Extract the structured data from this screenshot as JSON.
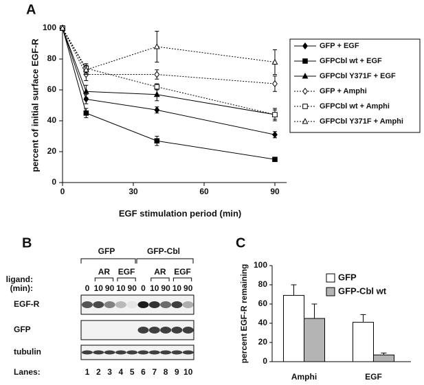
{
  "panel_labels": [
    "A",
    "B",
    "C"
  ],
  "chart_data": [
    {
      "type": "line",
      "x_label": "EGF stimulation period (min)",
      "y_label": "percent of initial surface EGF-R",
      "x": [
        0,
        10,
        40,
        90
      ],
      "xlim": [
        0,
        95
      ],
      "xticks": [
        0,
        30,
        60,
        90
      ],
      "ylim": [
        0,
        100
      ],
      "yticks": [
        0,
        20,
        40,
        60,
        80,
        100
      ],
      "series": [
        {
          "name": "GFP + EGF",
          "color": "#000000",
          "marker": "diamond",
          "filled": true,
          "dash": "solid",
          "values": [
            100,
            54,
            47,
            31
          ],
          "errors": [
            0,
            3,
            2,
            2
          ]
        },
        {
          "name": "GFPCbl wt + EGF",
          "color": "#000000",
          "marker": "square",
          "filled": true,
          "dash": "solid",
          "values": [
            100,
            45,
            27,
            15
          ],
          "errors": [
            0,
            3,
            3,
            1
          ]
        },
        {
          "name": "GFPCbl Y371F + EGF",
          "color": "#000000",
          "marker": "triangle",
          "filled": true,
          "dash": "solid",
          "values": [
            100,
            59,
            57,
            44
          ],
          "errors": [
            0,
            4,
            4,
            3
          ]
        },
        {
          "name": "GFP + Amphi",
          "color": "#000000",
          "marker": "diamond",
          "filled": false,
          "dash": "dotted",
          "values": [
            100,
            70,
            70,
            64
          ],
          "errors": [
            0,
            4,
            3,
            5
          ]
        },
        {
          "name": "GFPCbl wt + Amphi",
          "color": "#000000",
          "marker": "square",
          "filled": false,
          "dash": "dotted",
          "values": [
            100,
            74,
            62,
            44
          ],
          "errors": [
            0,
            3,
            2,
            4
          ]
        },
        {
          "name": "GFPCbl Y371F + Amphi",
          "color": "#000000",
          "marker": "triangle",
          "filled": false,
          "dash": "dotted",
          "values": [
            100,
            73,
            88,
            78
          ],
          "errors": [
            0,
            3,
            10,
            8
          ]
        }
      ]
    },
    {
      "type": "bar",
      "y_label": "percent EGF-R remaining",
      "categories": [
        "Amphi",
        "EGF"
      ],
      "ylim": [
        0,
        100
      ],
      "yticks": [
        0,
        20,
        40,
        60,
        80,
        100
      ],
      "series": [
        {
          "name": "GFP",
          "color": "#ffffff",
          "values": [
            69,
            41
          ],
          "errors": [
            11,
            8
          ]
        },
        {
          "name": "GFP-Cbl wt",
          "color": "#b4b4b4",
          "values": [
            45,
            7
          ],
          "errors": [
            15,
            2
          ]
        }
      ]
    }
  ],
  "blot": {
    "groups": [
      "GFP",
      "GFP-Cbl"
    ],
    "ligands": [
      "AR",
      "EGF",
      "AR",
      "EGF"
    ],
    "ligand_label": "ligand:",
    "time_label": "(min):",
    "times": [
      0,
      10,
      90,
      10,
      90,
      0,
      10,
      90,
      10,
      90
    ],
    "rows": [
      "EGF-R",
      "GFP",
      "tubulin"
    ],
    "lanes_label": "Lanes:",
    "lanes": [
      1,
      2,
      3,
      4,
      5,
      6,
      7,
      8,
      9,
      10
    ]
  }
}
